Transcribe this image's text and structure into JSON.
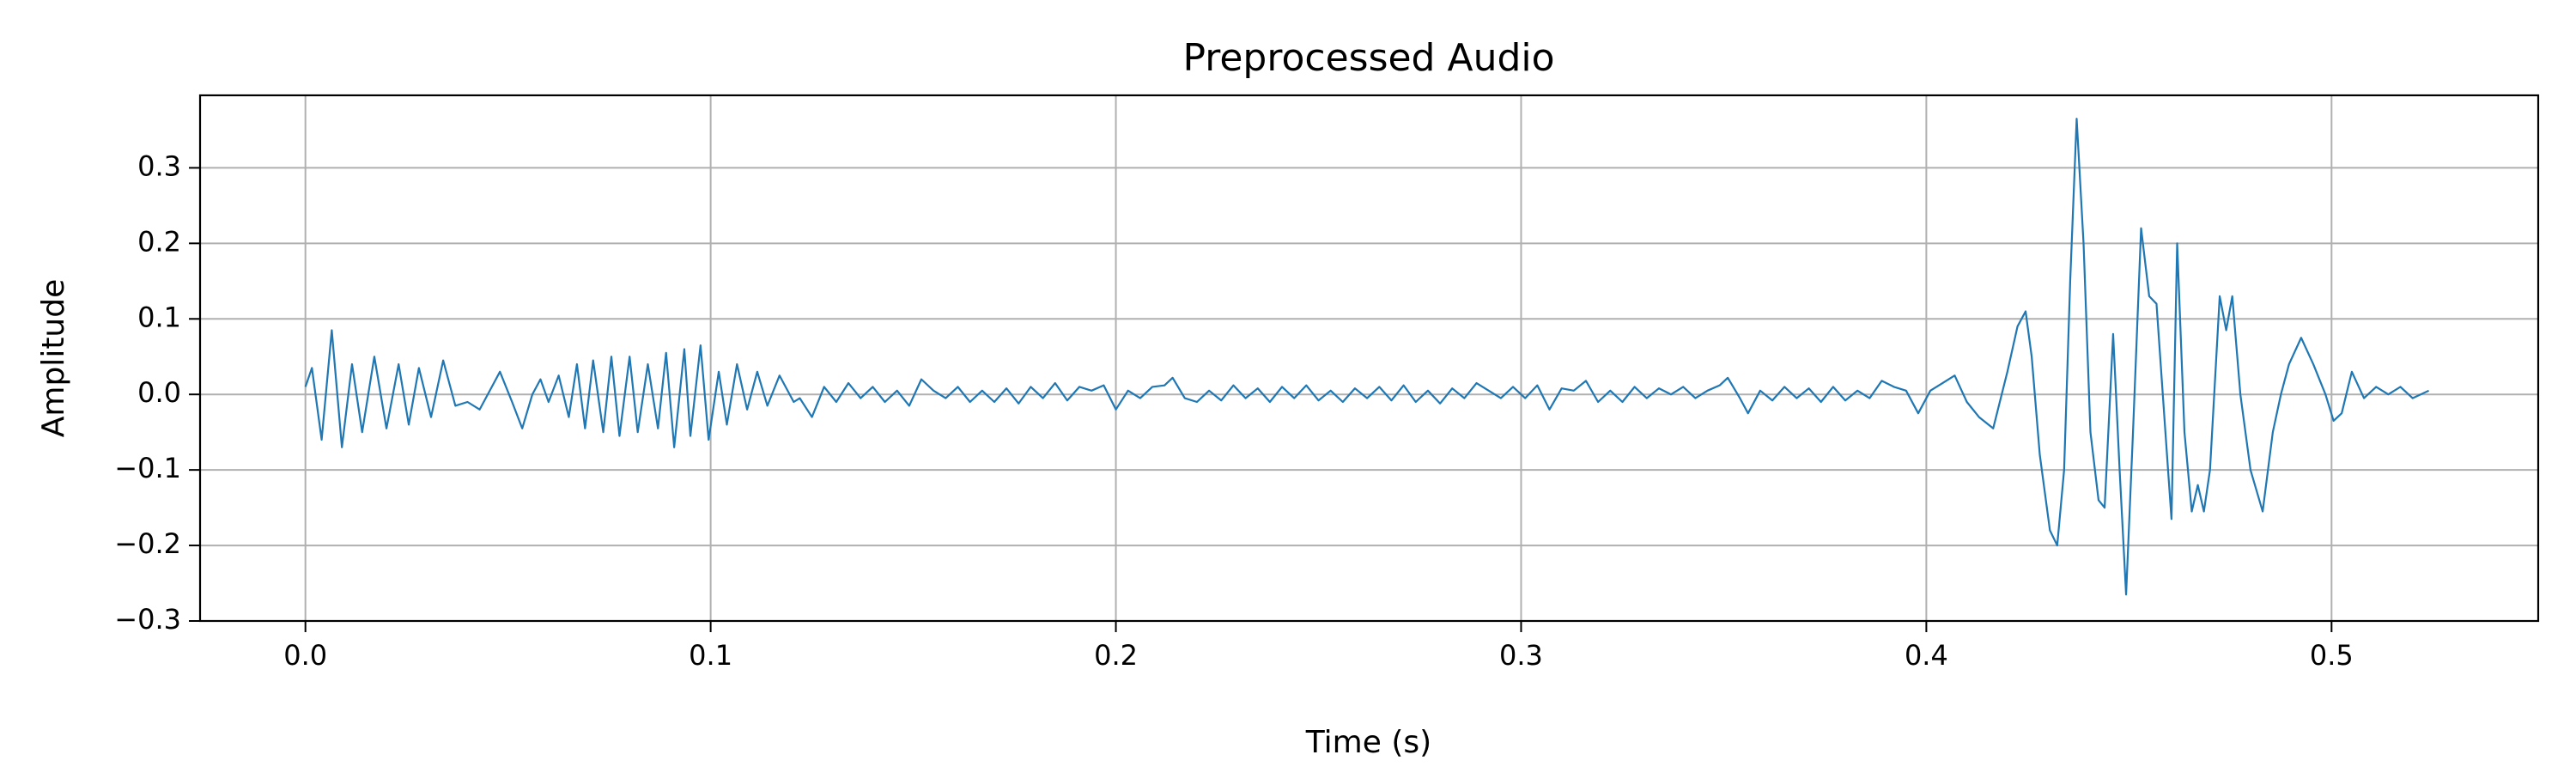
{
  "chart_data": {
    "type": "line",
    "title": "Preprocessed Audio",
    "x_label": "Time (s)",
    "y_label": "Amplitude",
    "color": "#1f77b4",
    "grid": true,
    "xlim": [
      -0.026,
      0.551
    ],
    "ylim": [
      -0.3,
      0.396
    ],
    "xticks": [
      {
        "value": 0,
        "label": "0.0"
      },
      0.1,
      0.2,
      0.3,
      0.4,
      0.5
    ],
    "yticks": [
      {
        "value": -0.3,
        "label": "−0.3"
      },
      {
        "value": -0.2,
        "label": "−0.2"
      },
      {
        "value": -0.1,
        "label": "−0.1"
      },
      {
        "value": 0,
        "label": "0.0"
      },
      0.1,
      0.2,
      0.3
    ],
    "x": [
      0.0,
      0.0016,
      0.004,
      0.0065,
      0.009,
      0.0115,
      0.014,
      0.017,
      0.02,
      0.023,
      0.0255,
      0.028,
      0.031,
      0.034,
      0.037,
      0.04,
      0.043,
      0.046,
      0.048,
      0.051,
      0.0535,
      0.056,
      0.058,
      0.06,
      0.0625,
      0.065,
      0.067,
      0.069,
      0.071,
      0.0735,
      0.0755,
      0.0775,
      0.08,
      0.082,
      0.0845,
      0.087,
      0.089,
      0.091,
      0.0935,
      0.095,
      0.0975,
      0.0995,
      0.102,
      0.104,
      0.1065,
      0.109,
      0.1115,
      0.114,
      0.117,
      0.1205,
      0.122,
      0.125,
      0.128,
      0.131,
      0.134,
      0.137,
      0.14,
      0.143,
      0.146,
      0.149,
      0.152,
      0.155,
      0.158,
      0.161,
      0.164,
      0.167,
      0.17,
      0.173,
      0.176,
      0.179,
      0.182,
      0.185,
      0.188,
      0.191,
      0.194,
      0.197,
      0.2,
      0.203,
      0.206,
      0.209,
      0.212,
      0.214,
      0.217,
      0.22,
      0.223,
      0.226,
      0.229,
      0.232,
      0.235,
      0.238,
      0.241,
      0.244,
      0.247,
      0.25,
      0.253,
      0.256,
      0.259,
      0.262,
      0.265,
      0.268,
      0.271,
      0.274,
      0.277,
      0.28,
      0.283,
      0.286,
      0.289,
      0.292,
      0.295,
      0.298,
      0.301,
      0.304,
      0.307,
      0.31,
      0.313,
      0.316,
      0.319,
      0.322,
      0.325,
      0.328,
      0.331,
      0.334,
      0.337,
      0.34,
      0.343,
      0.346,
      0.349,
      0.351,
      0.354,
      0.356,
      0.359,
      0.362,
      0.365,
      0.368,
      0.371,
      0.374,
      0.377,
      0.38,
      0.383,
      0.386,
      0.389,
      0.392,
      0.395,
      0.398,
      0.401,
      0.404,
      0.407,
      0.41,
      0.413,
      0.4165,
      0.42,
      0.4225,
      0.4245,
      0.426,
      0.428,
      0.4305,
      0.4323,
      0.434,
      0.4355,
      0.4371,
      0.4388,
      0.4405,
      0.4425,
      0.444,
      0.4461,
      0.4477,
      0.4493,
      0.451,
      0.453,
      0.455,
      0.4568,
      0.459,
      0.4605,
      0.4619,
      0.4637,
      0.4655,
      0.467,
      0.4685,
      0.47,
      0.4724,
      0.474,
      0.4755,
      0.4775,
      0.48,
      0.483,
      0.4855,
      0.4875,
      0.4895,
      0.4925,
      0.4955,
      0.4985,
      0.5005,
      0.5025,
      0.505,
      0.508,
      0.511,
      0.514,
      0.517,
      0.52,
      0.524
    ],
    "values": [
      0.01,
      0.035,
      -0.06,
      0.085,
      -0.07,
      0.04,
      -0.05,
      0.05,
      -0.045,
      0.04,
      -0.04,
      0.035,
      -0.03,
      0.045,
      -0.015,
      -0.01,
      -0.02,
      0.01,
      0.03,
      -0.01,
      -0.045,
      0.0,
      0.02,
      -0.01,
      0.025,
      -0.03,
      0.04,
      -0.045,
      0.045,
      -0.05,
      0.05,
      -0.055,
      0.05,
      -0.05,
      0.04,
      -0.045,
      0.055,
      -0.07,
      0.06,
      -0.055,
      0.065,
      -0.06,
      0.03,
      -0.04,
      0.04,
      -0.02,
      0.03,
      -0.015,
      0.025,
      -0.01,
      -0.005,
      -0.03,
      0.01,
      -0.01,
      0.015,
      -0.005,
      0.01,
      -0.01,
      0.005,
      -0.015,
      0.02,
      0.005,
      -0.005,
      0.01,
      -0.01,
      0.005,
      -0.01,
      0.008,
      -0.012,
      0.01,
      -0.005,
      0.015,
      -0.008,
      0.01,
      0.005,
      0.012,
      -0.02,
      0.005,
      -0.005,
      0.01,
      0.012,
      0.022,
      -0.005,
      -0.01,
      0.005,
      -0.008,
      0.012,
      -0.005,
      0.008,
      -0.01,
      0.01,
      -0.005,
      0.012,
      -0.008,
      0.005,
      -0.01,
      0.008,
      -0.005,
      0.01,
      -0.008,
      0.012,
      -0.01,
      0.005,
      -0.012,
      0.008,
      -0.005,
      0.015,
      0.005,
      -0.005,
      0.01,
      -0.005,
      0.012,
      -0.02,
      0.008,
      0.005,
      0.018,
      -0.01,
      0.005,
      -0.01,
      0.01,
      -0.005,
      0.008,
      0.0,
      0.01,
      -0.005,
      0.005,
      0.012,
      0.022,
      -0.005,
      -0.025,
      0.005,
      -0.008,
      0.01,
      -0.005,
      0.008,
      -0.01,
      0.01,
      -0.008,
      0.005,
      -0.005,
      0.018,
      0.01,
      0.005,
      -0.025,
      0.005,
      0.015,
      0.025,
      -0.01,
      -0.03,
      -0.045,
      0.03,
      0.09,
      0.11,
      0.05,
      -0.08,
      -0.18,
      -0.2,
      -0.1,
      0.15,
      0.365,
      0.2,
      -0.05,
      -0.14,
      -0.15,
      0.08,
      -0.1,
      -0.265,
      -0.05,
      0.22,
      0.13,
      0.12,
      -0.05,
      -0.165,
      0.2,
      -0.05,
      -0.155,
      -0.12,
      -0.155,
      -0.1,
      0.13,
      0.085,
      0.13,
      0.0,
      -0.1,
      -0.155,
      -0.05,
      0.0,
      0.04,
      0.075,
      0.04,
      0.0,
      -0.035,
      -0.025,
      0.03,
      -0.005,
      0.01,
      0.0,
      0.01,
      -0.005,
      0.005
    ]
  }
}
